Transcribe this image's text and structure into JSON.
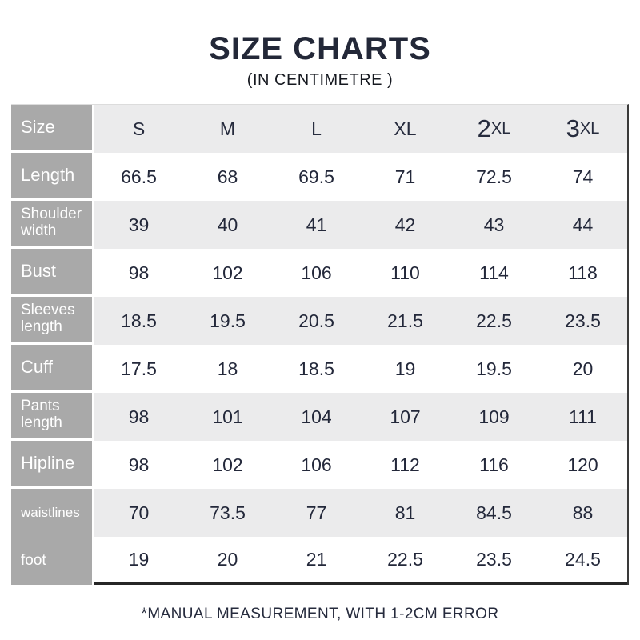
{
  "page": {
    "title": "SIZE CHARTS",
    "subtitle": "(IN CENTIMETRE )",
    "footnote": "*MANUAL MEASUREMENT, WITH 1-2CM ERROR"
  },
  "colors": {
    "heading_navy": "#232838",
    "cell_text_navy": "#23283a",
    "label_column_gray": "#a9a9a9",
    "band_gray": "#ebebec",
    "table_border_dark": "#3a3a3a"
  },
  "table": {
    "corner_label": "Size",
    "size_headers": [
      {
        "main": "S",
        "suffix": ""
      },
      {
        "main": "M",
        "suffix": ""
      },
      {
        "main": "L",
        "suffix": ""
      },
      {
        "main": "XL",
        "suffix": ""
      },
      {
        "main": "2",
        "suffix": "XL"
      },
      {
        "main": "3",
        "suffix": "XL"
      }
    ],
    "rows": [
      {
        "label": "Length",
        "values": [
          "66.5",
          "68",
          "69.5",
          "71",
          "72.5",
          "74"
        ]
      },
      {
        "label": "Shoulder width",
        "values": [
          "39",
          "40",
          "41",
          "42",
          "43",
          "44"
        ]
      },
      {
        "label": "Bust",
        "values": [
          "98",
          "102",
          "106",
          "110",
          "114",
          "118"
        ]
      },
      {
        "label": "Sleeves length",
        "values": [
          "18.5",
          "19.5",
          "20.5",
          "21.5",
          "22.5",
          "23.5"
        ]
      },
      {
        "label": "Cuff",
        "values": [
          "17.5",
          "18",
          "18.5",
          "19",
          "19.5",
          "20"
        ]
      },
      {
        "label": "Pants length",
        "values": [
          "98",
          "101",
          "104",
          "107",
          "109",
          "111"
        ]
      },
      {
        "label": "Hipline",
        "values": [
          "98",
          "102",
          "106",
          "112",
          "116",
          "120"
        ]
      },
      {
        "label": "waistlines",
        "values": [
          "70",
          "73.5",
          "77",
          "81",
          "84.5",
          "88"
        ]
      },
      {
        "label": "foot",
        "values": [
          "19",
          "20",
          "21",
          "22.5",
          "23.5",
          "24.5"
        ]
      }
    ]
  },
  "chart_data": {
    "type": "table",
    "title": "SIZE CHARTS",
    "subtitle": "(IN CENTIMETRE )",
    "columns": [
      "Size",
      "S",
      "M",
      "L",
      "XL",
      "2XL",
      "3XL"
    ],
    "rows": [
      [
        "Length",
        66.5,
        68,
        69.5,
        71,
        72.5,
        74
      ],
      [
        "Shoulder width",
        39,
        40,
        41,
        42,
        43,
        44
      ],
      [
        "Bust",
        98,
        102,
        106,
        110,
        114,
        118
      ],
      [
        "Sleeves length",
        18.5,
        19.5,
        20.5,
        21.5,
        22.5,
        23.5
      ],
      [
        "Cuff",
        17.5,
        18,
        18.5,
        19,
        19.5,
        20
      ],
      [
        "Pants length",
        98,
        101,
        104,
        107,
        109,
        111
      ],
      [
        "Hipline",
        98,
        102,
        106,
        112,
        116,
        120
      ],
      [
        "waistlines",
        70,
        73.5,
        77,
        81,
        84.5,
        88
      ],
      [
        "foot",
        19,
        20,
        21,
        22.5,
        23.5,
        24.5
      ]
    ],
    "footnote": "*MANUAL MEASUREMENT, WITH 1-2CM ERROR"
  }
}
